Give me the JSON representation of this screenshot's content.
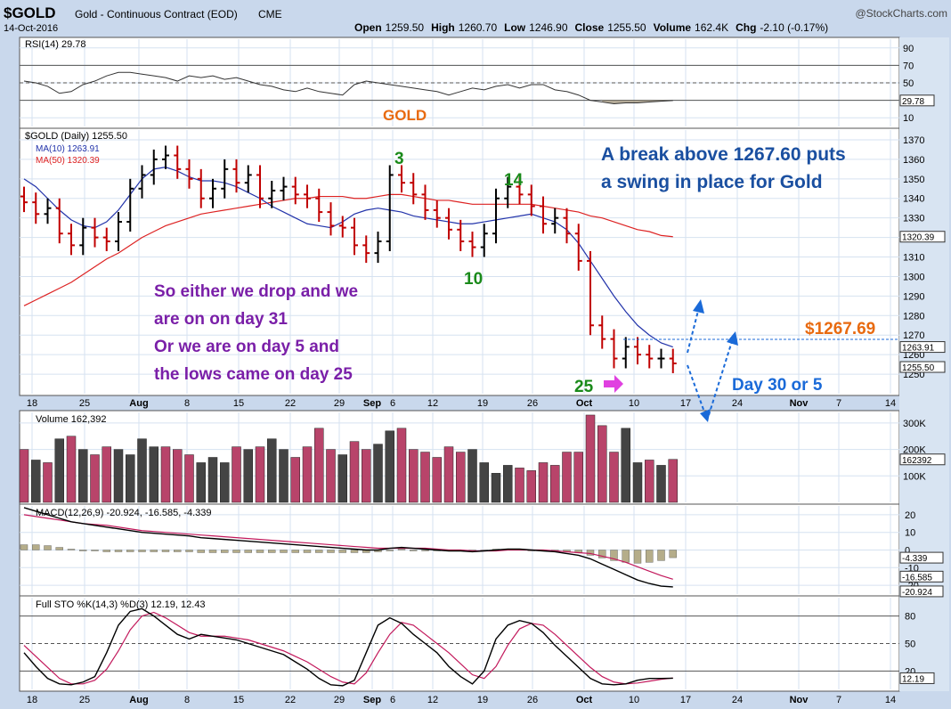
{
  "header": {
    "symbol": "$GOLD",
    "name": "Gold - Continuous Contract (EOD)",
    "exchange": "CME",
    "watermark": "@StockCharts.com",
    "date": "14-Oct-2016",
    "ohlc": [
      {
        "label": "Open",
        "value": "1259.50"
      },
      {
        "label": "High",
        "value": "1260.70"
      },
      {
        "label": "Low",
        "value": "1246.90"
      },
      {
        "label": "Close",
        "value": "1255.50"
      },
      {
        "label": "Volume",
        "value": "162.4K"
      },
      {
        "label": "Chg",
        "value": "-2.10 (-0.17%)"
      }
    ]
  },
  "colors": {
    "background": "#c9d8ec",
    "panel": "#ffffff",
    "grid": "#cfdcec",
    "up": "#000000",
    "down": "#c00000",
    "ma10": "#2233aa",
    "ma50": "#dd2222",
    "vol_up": "#444444",
    "vol_down": "#b8446a",
    "annot_blue": "#1a4fa0",
    "annot_purple": "#7a1fa8",
    "annot_green": "#1a8a1a",
    "annot_orange": "#e86a10",
    "arrow_blue": "#1a6ad8",
    "arrow_magenta": "#e040e0"
  },
  "x_axis": {
    "ticks": [
      "18",
      "25",
      "Aug",
      "8",
      "15",
      "22",
      "29",
      "Sep",
      "6",
      "12",
      "19",
      "26",
      "Oct",
      "10",
      "17",
      "24",
      "Nov",
      "7",
      "14"
    ]
  },
  "chart_data": [
    {
      "type": "line",
      "panel": "rsi",
      "label": "RSI(14) 29.78",
      "last_value_tag": "29.78",
      "axis_ticks": [
        "90",
        "70",
        "50",
        "30",
        "10"
      ],
      "ylim": [
        0,
        100
      ],
      "reference_lines": [
        70,
        50,
        30
      ],
      "values": [
        52,
        50,
        46,
        38,
        40,
        48,
        52,
        58,
        62,
        62,
        60,
        58,
        56,
        52,
        58,
        56,
        58,
        54,
        56,
        52,
        48,
        46,
        42,
        40,
        44,
        40,
        38,
        36,
        48,
        52,
        50,
        48,
        46,
        44,
        42,
        40,
        36,
        40,
        44,
        42,
        46,
        48,
        44,
        48,
        48,
        42,
        40,
        36,
        30,
        28,
        26,
        27,
        27,
        28,
        29,
        29.78
      ]
    },
    {
      "type": "ohlc",
      "panel": "price",
      "title": "GOLD",
      "legend": [
        "$GOLD (Daily) 1255.50",
        "MA(10) 1263.91",
        "MA(50) 1320.39"
      ],
      "axis_ticks": [
        "1370",
        "1360",
        "1350",
        "1340",
        "1330",
        "1320",
        "1310",
        "1300",
        "1290",
        "1280",
        "1270",
        "1260",
        "1250"
      ],
      "ylim": [
        1240,
        1375
      ],
      "price_tags": [
        "1320.39",
        "1263.91",
        "1255.50"
      ],
      "close": [
        1338,
        1332,
        1335,
        1322,
        1316,
        1325,
        1320,
        1318,
        1328,
        1345,
        1352,
        1360,
        1362,
        1355,
        1350,
        1340,
        1345,
        1355,
        1348,
        1352,
        1340,
        1344,
        1346,
        1342,
        1340,
        1333,
        1326,
        1325,
        1316,
        1312,
        1318,
        1352,
        1348,
        1342,
        1334,
        1330,
        1324,
        1318,
        1315,
        1322,
        1340,
        1346,
        1342,
        1336,
        1327,
        1330,
        1322,
        1308,
        1275,
        1268,
        1258,
        1264,
        1260,
        1258,
        1258,
        1255.5
      ],
      "ma10": [
        1350,
        1346,
        1340,
        1334,
        1329,
        1326,
        1325,
        1328,
        1334,
        1342,
        1350,
        1355,
        1356,
        1354,
        1351,
        1349,
        1349,
        1348,
        1346,
        1343,
        1340,
        1336,
        1333,
        1330,
        1327,
        1326,
        1325,
        1328,
        1332,
        1334,
        1335,
        1334,
        1333,
        1331,
        1330,
        1329,
        1328,
        1327,
        1327,
        1328,
        1329,
        1330,
        1331,
        1332,
        1330,
        1328,
        1324,
        1317,
        1308,
        1299,
        1290,
        1282,
        1275,
        1270,
        1266,
        1263.91
      ],
      "ma50": [
        1285,
        1288,
        1291,
        1294,
        1297,
        1301,
        1305,
        1309,
        1312,
        1316,
        1320,
        1323,
        1326,
        1328,
        1330,
        1332,
        1333,
        1334,
        1335,
        1336,
        1337,
        1338,
        1339,
        1340,
        1340,
        1341,
        1341,
        1341,
        1340,
        1340,
        1341,
        1342,
        1342,
        1341,
        1340,
        1339,
        1339,
        1338,
        1337,
        1337,
        1337,
        1337,
        1337,
        1337,
        1336,
        1335,
        1334,
        1333,
        1331,
        1330,
        1328,
        1326,
        1324,
        1323,
        1321,
        1320.39
      ]
    },
    {
      "type": "bar",
      "panel": "volume",
      "label": "Volume 162,392",
      "axis_ticks": [
        "300K",
        "200K",
        "100K"
      ],
      "last_value_tag": "162392",
      "ylim": [
        0,
        340000
      ],
      "values": [
        200000,
        160000,
        150000,
        240000,
        250000,
        200000,
        180000,
        210000,
        200000,
        180000,
        240000,
        210000,
        210000,
        200000,
        180000,
        150000,
        170000,
        150000,
        210000,
        200000,
        210000,
        240000,
        200000,
        170000,
        210000,
        280000,
        200000,
        180000,
        230000,
        200000,
        220000,
        270000,
        280000,
        200000,
        190000,
        170000,
        210000,
        190000,
        200000,
        150000,
        110000,
        140000,
        130000,
        120000,
        150000,
        140000,
        190000,
        190000,
        330000,
        290000,
        190000,
        280000,
        150000,
        160000,
        140000,
        162392
      ],
      "up": [
        0,
        1,
        0,
        1,
        0,
        1,
        0,
        0,
        1,
        1,
        1,
        1,
        0,
        0,
        0,
        1,
        1,
        1,
        0,
        1,
        0,
        1,
        1,
        0,
        0,
        0,
        0,
        1,
        0,
        0,
        1,
        1,
        0,
        0,
        0,
        0,
        0,
        0,
        1,
        1,
        1,
        1,
        0,
        0,
        0,
        0,
        0,
        0,
        0,
        0,
        0,
        1,
        1,
        0,
        1,
        0
      ]
    },
    {
      "type": "line",
      "panel": "macd",
      "label": "MACD(12,26,9) -20.924, -16.585, -4.339",
      "axis_ticks": [
        "20",
        "10",
        "0",
        "-10",
        "-20"
      ],
      "value_tags": [
        "-4.339",
        "-16.585",
        "-20.924"
      ],
      "ylim": [
        -25,
        25
      ],
      "macd": [
        24,
        22,
        20,
        18,
        16,
        15,
        14,
        13,
        12,
        11,
        10,
        9.5,
        9,
        8.5,
        8,
        7,
        6.5,
        6,
        5.5,
        5,
        4.5,
        4,
        3.5,
        3,
        2.5,
        2,
        1.5,
        1,
        0.5,
        0,
        0,
        1,
        1.5,
        1,
        0.5,
        0,
        -0.5,
        -0.5,
        -1,
        -0.5,
        0,
        0.5,
        0.5,
        0,
        -0.5,
        -1,
        -2,
        -3,
        -5,
        -8,
        -11,
        -14,
        -17,
        -19,
        -20.5,
        -20.924
      ],
      "signal": [
        20,
        19,
        18,
        17,
        16,
        15,
        14.5,
        14,
        13,
        12,
        11,
        10.5,
        10,
        9.5,
        9,
        8.5,
        8,
        7.5,
        7,
        6.5,
        6,
        5.5,
        5,
        4.5,
        4,
        3.5,
        3,
        2.5,
        2,
        1.5,
        1,
        1,
        1,
        1,
        1,
        0.5,
        0,
        0,
        -0.5,
        -0.5,
        -0.5,
        0,
        0,
        0,
        0,
        -0.5,
        -1,
        -1.5,
        -2,
        -3.5,
        -5,
        -7,
        -9.5,
        -12,
        -14.5,
        -16.585
      ],
      "histogram": [
        3,
        3,
        2.5,
        1.5,
        0.5,
        0,
        -0.5,
        -1,
        -1,
        -1,
        -1,
        -1,
        -1,
        -1,
        -1,
        -1.5,
        -1.5,
        -1.5,
        -1.5,
        -1.5,
        -1.5,
        -1.5,
        -1.5,
        -1.5,
        -1.5,
        -1.5,
        -1.5,
        -1.5,
        -1.5,
        -1.5,
        -1,
        0,
        0.5,
        0,
        -0.5,
        -0.5,
        -0.5,
        -0.5,
        -0.5,
        0,
        0.5,
        0.5,
        0.5,
        0,
        -0.5,
        -0.5,
        -1,
        -1.5,
        -3,
        -4.5,
        -6,
        -7,
        -7.5,
        -7,
        -6,
        -4.339
      ]
    },
    {
      "type": "line",
      "panel": "stochastic",
      "label": "Full STO %K(14,3) %D(3) 12.19, 12.43",
      "axis_ticks": [
        "80",
        "50",
        "20"
      ],
      "last_value_tag": "12.19",
      "ylim": [
        0,
        100
      ],
      "reference_lines": [
        80,
        50,
        20
      ],
      "k": [
        40,
        25,
        12,
        6,
        5,
        8,
        14,
        40,
        70,
        85,
        88,
        80,
        70,
        60,
        55,
        60,
        58,
        56,
        54,
        50,
        46,
        42,
        38,
        30,
        22,
        12,
        5,
        4,
        10,
        40,
        70,
        78,
        72,
        60,
        50,
        40,
        25,
        14,
        6,
        20,
        55,
        70,
        75,
        72,
        62,
        48,
        36,
        24,
        12,
        6,
        5,
        6,
        10,
        12,
        12,
        12.19
      ],
      "d": [
        48,
        36,
        24,
        12,
        6,
        6,
        10,
        22,
        42,
        65,
        80,
        84,
        78,
        70,
        62,
        58,
        58,
        58,
        56,
        54,
        50,
        46,
        42,
        36,
        30,
        22,
        14,
        8,
        6,
        18,
        40,
        60,
        73,
        70,
        60,
        50,
        40,
        28,
        16,
        12,
        25,
        48,
        66,
        72,
        70,
        60,
        48,
        36,
        24,
        14,
        8,
        6,
        7,
        9,
        11,
        12.43
      ]
    }
  ],
  "annotations": {
    "headline": [
      "A break above 1267.60  puts",
      "a swing in place for Gold"
    ],
    "scenario": [
      "So either we drop and we",
      "are on on day 31",
      "Or we are on day 5 and",
      "the lows came on day 25"
    ],
    "cycle_counts": [
      "3",
      "14",
      "10",
      "25"
    ],
    "level_label": "$1267.69",
    "day_label": "Day 30 or 5"
  }
}
